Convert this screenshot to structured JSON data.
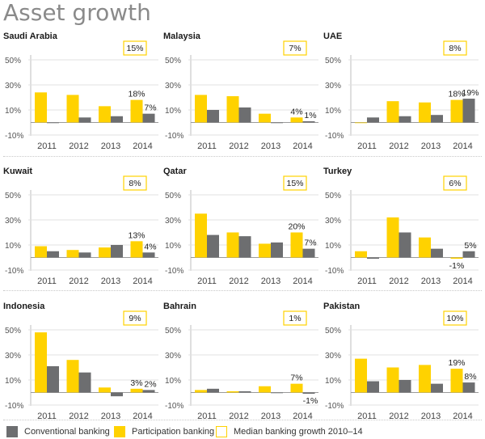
{
  "title": "Asset growth",
  "colors": {
    "conventional": "#6d6e70",
    "participation": "#ffd200",
    "median_border": "#ffd200"
  },
  "legend": {
    "conventional": "Conventional banking",
    "participation": "Participation banking",
    "median": "Median banking growth 2010–14"
  },
  "chart_data": [
    {
      "type": "bar",
      "title": "Saudi Arabia",
      "categories": [
        "2011",
        "2012",
        "2013",
        "2014"
      ],
      "yticks": [
        "50%",
        "30%",
        "10%",
        "-10%"
      ],
      "ylim": [
        -10,
        50
      ],
      "series": [
        {
          "name": "Conventional banking",
          "values": [
            0,
            4,
            5,
            7
          ]
        },
        {
          "name": "Participation banking",
          "values": [
            24,
            22,
            13,
            18
          ]
        }
      ],
      "median": "15%",
      "labels": [
        {
          "text": "18%",
          "series": 1,
          "index": 3
        },
        {
          "text": "7%",
          "series": 0,
          "index": 3
        }
      ]
    },
    {
      "type": "bar",
      "title": "Malaysia",
      "categories": [
        "2011",
        "2012",
        "2013",
        "2014"
      ],
      "yticks": [
        "50%",
        "30%",
        "10%",
        "-10%"
      ],
      "ylim": [
        -10,
        50
      ],
      "series": [
        {
          "name": "Conventional banking",
          "values": [
            10,
            12,
            0,
            1
          ]
        },
        {
          "name": "Participation banking",
          "values": [
            22,
            21,
            7,
            4
          ]
        }
      ],
      "median": "7%",
      "labels": [
        {
          "text": "4%",
          "series": 1,
          "index": 3
        },
        {
          "text": "1%",
          "series": 0,
          "index": 3
        }
      ]
    },
    {
      "type": "bar",
      "title": "UAE",
      "categories": [
        "2011",
        "2012",
        "2013",
        "2014"
      ],
      "yticks": [
        "50%",
        "30%",
        "10%",
        "-10%"
      ],
      "ylim": [
        -10,
        50
      ],
      "series": [
        {
          "name": "Conventional banking",
          "values": [
            4,
            5,
            6,
            19
          ]
        },
        {
          "name": "Participation banking",
          "values": [
            0,
            17,
            16,
            18
          ]
        }
      ],
      "median": "8%",
      "labels": [
        {
          "text": "18%",
          "series": 1,
          "index": 3
        },
        {
          "text": "19%",
          "series": 0,
          "index": 3
        }
      ]
    },
    {
      "type": "bar",
      "title": "Kuwait",
      "categories": [
        "2011",
        "2012",
        "2013",
        "2014"
      ],
      "yticks": [
        "50%",
        "30%",
        "10%",
        "-10%"
      ],
      "ylim": [
        -10,
        50
      ],
      "series": [
        {
          "name": "Conventional banking",
          "values": [
            5,
            4,
            10,
            4
          ]
        },
        {
          "name": "Participation banking",
          "values": [
            9,
            6,
            8,
            13
          ]
        }
      ],
      "median": "8%",
      "labels": [
        {
          "text": "13%",
          "series": 1,
          "index": 3
        },
        {
          "text": "4%",
          "series": 0,
          "index": 3
        }
      ]
    },
    {
      "type": "bar",
      "title": "Qatar",
      "categories": [
        "2011",
        "2012",
        "2013",
        "2014"
      ],
      "yticks": [
        "50%",
        "30%",
        "10%",
        "-10%"
      ],
      "ylim": [
        -10,
        50
      ],
      "series": [
        {
          "name": "Conventional banking",
          "values": [
            18,
            17,
            12,
            7
          ]
        },
        {
          "name": "Participation banking",
          "values": [
            35,
            20,
            11,
            20
          ]
        }
      ],
      "median": "15%",
      "labels": [
        {
          "text": "20%",
          "series": 1,
          "index": 3
        },
        {
          "text": "7%",
          "series": 0,
          "index": 3
        }
      ]
    },
    {
      "type": "bar",
      "title": "Turkey",
      "categories": [
        "2011",
        "2012",
        "2013",
        "2014"
      ],
      "yticks": [
        "50%",
        "30%",
        "10%",
        "-10%"
      ],
      "ylim": [
        -10,
        50
      ],
      "series": [
        {
          "name": "Conventional banking",
          "values": [
            -1,
            20,
            7,
            5
          ]
        },
        {
          "name": "Participation banking",
          "values": [
            5,
            32,
            16,
            -1
          ]
        }
      ],
      "median": "6%",
      "labels": [
        {
          "text": "-1%",
          "series": 1,
          "index": 3
        },
        {
          "text": "5%",
          "series": 0,
          "index": 3
        }
      ]
    },
    {
      "type": "bar",
      "title": "Indonesia",
      "categories": [
        "2011",
        "2012",
        "2013",
        "2014"
      ],
      "yticks": [
        "50%",
        "30%",
        "10%",
        "-10%"
      ],
      "ylim": [
        -10,
        50
      ],
      "series": [
        {
          "name": "Conventional banking",
          "values": [
            21,
            16,
            -3,
            2
          ]
        },
        {
          "name": "Participation banking",
          "values": [
            48,
            26,
            4,
            3
          ]
        }
      ],
      "median": "9%",
      "labels": [
        {
          "text": "3%",
          "series": 1,
          "index": 3
        },
        {
          "text": "2%",
          "series": 0,
          "index": 3
        }
      ]
    },
    {
      "type": "bar",
      "title": "Bahrain",
      "categories": [
        "2011",
        "2012",
        "2013",
        "2014"
      ],
      "yticks": [
        "50%",
        "30%",
        "10%",
        "-10%"
      ],
      "ylim": [
        -10,
        50
      ],
      "series": [
        {
          "name": "Conventional banking",
          "values": [
            3,
            1,
            0,
            -1
          ]
        },
        {
          "name": "Participation banking",
          "values": [
            2,
            1,
            5,
            7
          ]
        }
      ],
      "median": "1%",
      "labels": [
        {
          "text": "7%",
          "series": 1,
          "index": 3
        },
        {
          "text": "-1%",
          "series": 0,
          "index": 3
        }
      ]
    },
    {
      "type": "bar",
      "title": "Pakistan",
      "categories": [
        "2011",
        "2012",
        "2013",
        "2014"
      ],
      "yticks": [
        "50%",
        "30%",
        "10%",
        "-10%"
      ],
      "ylim": [
        -10,
        50
      ],
      "series": [
        {
          "name": "Conventional banking",
          "values": [
            9,
            10,
            7,
            8
          ]
        },
        {
          "name": "Participation banking",
          "values": [
            27,
            20,
            22,
            19
          ]
        }
      ],
      "median": "10%",
      "labels": [
        {
          "text": "19%",
          "series": 1,
          "index": 3
        },
        {
          "text": "8%",
          "series": 0,
          "index": 3
        }
      ]
    }
  ]
}
